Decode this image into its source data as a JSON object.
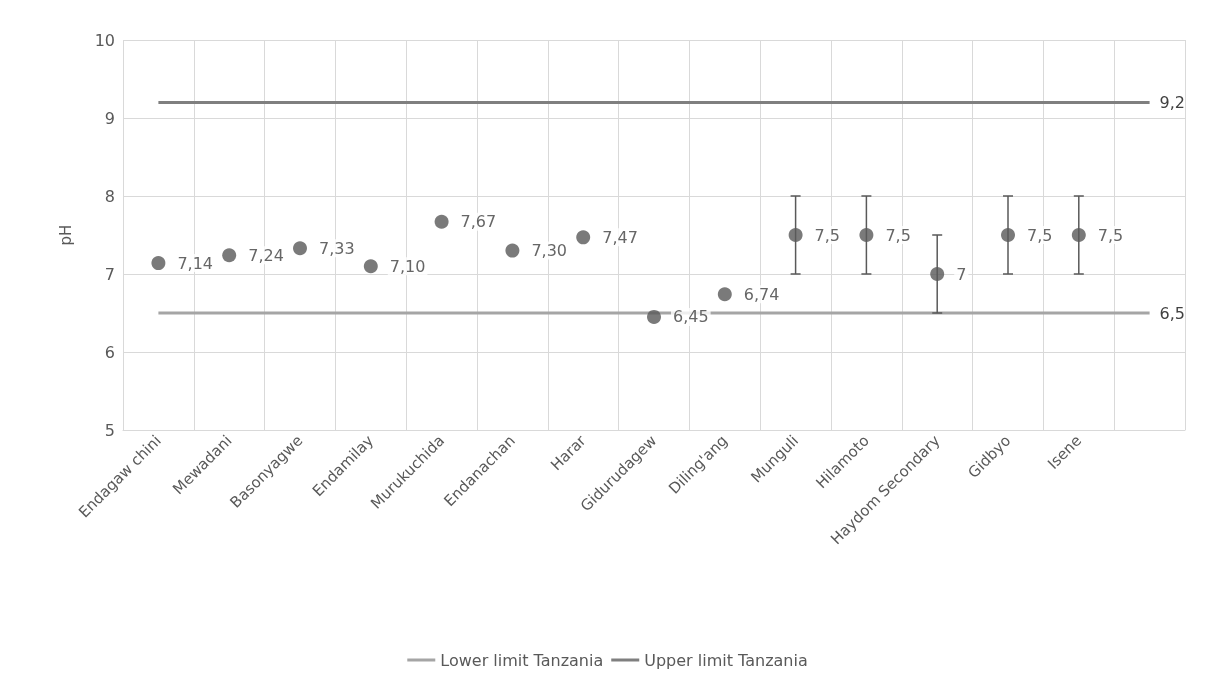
{
  "chart_data": {
    "type": "scatter",
    "ylabel": "pH",
    "categories": [
      "Endagaw chini",
      "Mewadani",
      "Basonyagwe",
      "Endamilay",
      "Murukuchida",
      "Endanachan",
      "Harar",
      "Gidurudagew",
      "Diling'ang",
      "Munguli",
      "Hilamoto",
      "Haydom Secondary",
      "Gidbyo",
      "Isene",
      null
    ],
    "series": [
      {
        "color": "#595959",
        "values": [
          7.14,
          7.24,
          7.33,
          7.1,
          7.67,
          7.3,
          7.47,
          6.45,
          6.74,
          7.5,
          7.5,
          7,
          7.5,
          7.5,
          null
        ],
        "errors": [
          null,
          null,
          null,
          null,
          null,
          null,
          null,
          null,
          null,
          0.5,
          0.5,
          0.5,
          0.5,
          0.5,
          null
        ],
        "value_labels": [
          "7,14",
          "7,24",
          "7,33",
          "7,10",
          "7,67",
          "7,30",
          "7,47",
          "6,45",
          "6,74",
          "7,5",
          "7,5",
          "7",
          "7,5",
          "7,5",
          null
        ]
      },
      {
        "type": "line",
        "marker": "none",
        "name": "Lower limit Tanzania",
        "color": "#a5a5a5",
        "values": [
          6.5,
          6.5,
          6.5,
          6.5,
          6.5,
          6.5,
          6.5,
          6.5,
          6.5,
          6.5,
          6.5,
          6.5,
          6.5,
          6.5,
          6.5
        ],
        "value_labels": [
          null,
          null,
          null,
          null,
          null,
          null,
          null,
          null,
          null,
          null,
          null,
          null,
          null,
          null,
          "6,5"
        ]
      },
      {
        "type": "line",
        "marker": "none",
        "name": "Upper limit Tanzania",
        "color": "#7f7f7f",
        "values": [
          9.2,
          9.2,
          9.2,
          9.2,
          9.2,
          9.2,
          9.2,
          9.2,
          9.2,
          9.2,
          9.2,
          9.2,
          9.2,
          9.2,
          9.2
        ],
        "value_labels": [
          null,
          null,
          null,
          null,
          null,
          null,
          null,
          null,
          null,
          null,
          null,
          null,
          null,
          null,
          "9,2"
        ]
      }
    ],
    "ylim": [
      5,
      10
    ],
    "yticks": [
      5,
      6,
      7,
      8,
      9,
      10
    ],
    "grid": true,
    "legend": "bottom",
    "marker": "circle"
  }
}
